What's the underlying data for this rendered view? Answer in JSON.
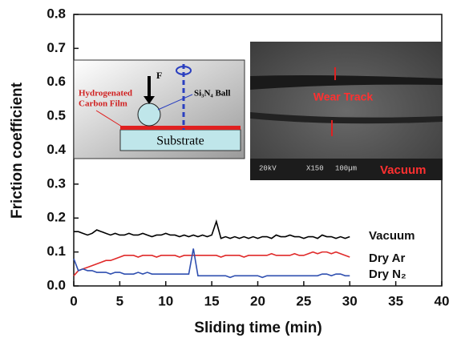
{
  "chart_data": {
    "type": "line",
    "xlabel": "Sliding time (min)",
    "ylabel": "Friction coefficient",
    "xlim": [
      0,
      40
    ],
    "ylim": [
      0,
      0.8
    ],
    "xticks": [
      0,
      5,
      10,
      15,
      20,
      25,
      30,
      35,
      40
    ],
    "yticks": [
      {
        "value": 0,
        "label": "0.0"
      },
      0.1,
      0.2,
      0.3,
      0.4,
      0.5,
      0.6,
      0.7,
      0.8
    ],
    "x": [
      0,
      0.5,
      1,
      1.5,
      2,
      2.5,
      3,
      3.5,
      4,
      4.5,
      5,
      5.5,
      6,
      6.5,
      7,
      7.5,
      8,
      8.5,
      9,
      9.5,
      10,
      10.5,
      11,
      11.5,
      12,
      12.5,
      13,
      13.5,
      14,
      14.5,
      15,
      15.5,
      16,
      16.5,
      17,
      17.5,
      18,
      18.5,
      19,
      19.5,
      20,
      20.5,
      21,
      21.5,
      22,
      22.5,
      23,
      23.5,
      24,
      24.5,
      25,
      25.5,
      26,
      26.5,
      27,
      27.5,
      28,
      28.5,
      29,
      29.5,
      30
    ],
    "series": [
      {
        "name": "Vacuum",
        "color": "#000000",
        "values": [
          0.16,
          0.16,
          0.155,
          0.15,
          0.155,
          0.165,
          0.16,
          0.155,
          0.15,
          0.155,
          0.15,
          0.15,
          0.155,
          0.15,
          0.15,
          0.155,
          0.15,
          0.145,
          0.15,
          0.15,
          0.155,
          0.15,
          0.15,
          0.145,
          0.15,
          0.145,
          0.15,
          0.145,
          0.15,
          0.145,
          0.15,
          0.19,
          0.14,
          0.145,
          0.14,
          0.145,
          0.14,
          0.145,
          0.14,
          0.145,
          0.14,
          0.145,
          0.145,
          0.14,
          0.15,
          0.145,
          0.145,
          0.15,
          0.145,
          0.145,
          0.14,
          0.145,
          0.145,
          0.14,
          0.15,
          0.145,
          0.145,
          0.14,
          0.145,
          0.14,
          0.145
        ]
      },
      {
        "name": "Dry Ar",
        "color": "#e02a2a",
        "values": [
          0.03,
          0.045,
          0.05,
          0.055,
          0.06,
          0.065,
          0.07,
          0.075,
          0.075,
          0.08,
          0.085,
          0.09,
          0.09,
          0.09,
          0.085,
          0.09,
          0.09,
          0.09,
          0.085,
          0.09,
          0.09,
          0.09,
          0.09,
          0.085,
          0.09,
          0.09,
          0.09,
          0.09,
          0.09,
          0.09,
          0.09,
          0.09,
          0.085,
          0.09,
          0.09,
          0.09,
          0.09,
          0.085,
          0.09,
          0.09,
          0.09,
          0.09,
          0.09,
          0.095,
          0.09,
          0.09,
          0.09,
          0.09,
          0.095,
          0.09,
          0.09,
          0.095,
          0.1,
          0.095,
          0.1,
          0.1,
          0.095,
          0.1,
          0.095,
          0.09,
          0.085
        ]
      },
      {
        "name": "Dry N₂",
        "color": "#2f4fb0",
        "values": [
          0.08,
          0.045,
          0.05,
          0.045,
          0.045,
          0.04,
          0.04,
          0.04,
          0.035,
          0.04,
          0.04,
          0.035,
          0.035,
          0.035,
          0.04,
          0.035,
          0.04,
          0.035,
          0.035,
          0.035,
          0.035,
          0.035,
          0.035,
          0.035,
          0.035,
          0.035,
          0.11,
          0.03,
          0.03,
          0.03,
          0.03,
          0.03,
          0.03,
          0.03,
          0.025,
          0.03,
          0.03,
          0.03,
          0.03,
          0.03,
          0.03,
          0.025,
          0.03,
          0.03,
          0.03,
          0.03,
          0.03,
          0.03,
          0.03,
          0.03,
          0.03,
          0.03,
          0.03,
          0.03,
          0.035,
          0.035,
          0.03,
          0.035,
          0.035,
          0.03,
          0.03
        ]
      }
    ],
    "annotations": [
      "F",
      "Hydrogenated",
      "Carbon Film",
      "Si₃N₄ Ball",
      "Substrate",
      "Wear Track",
      "Vacuum",
      "20kV",
      "X150",
      "100µm"
    ]
  }
}
